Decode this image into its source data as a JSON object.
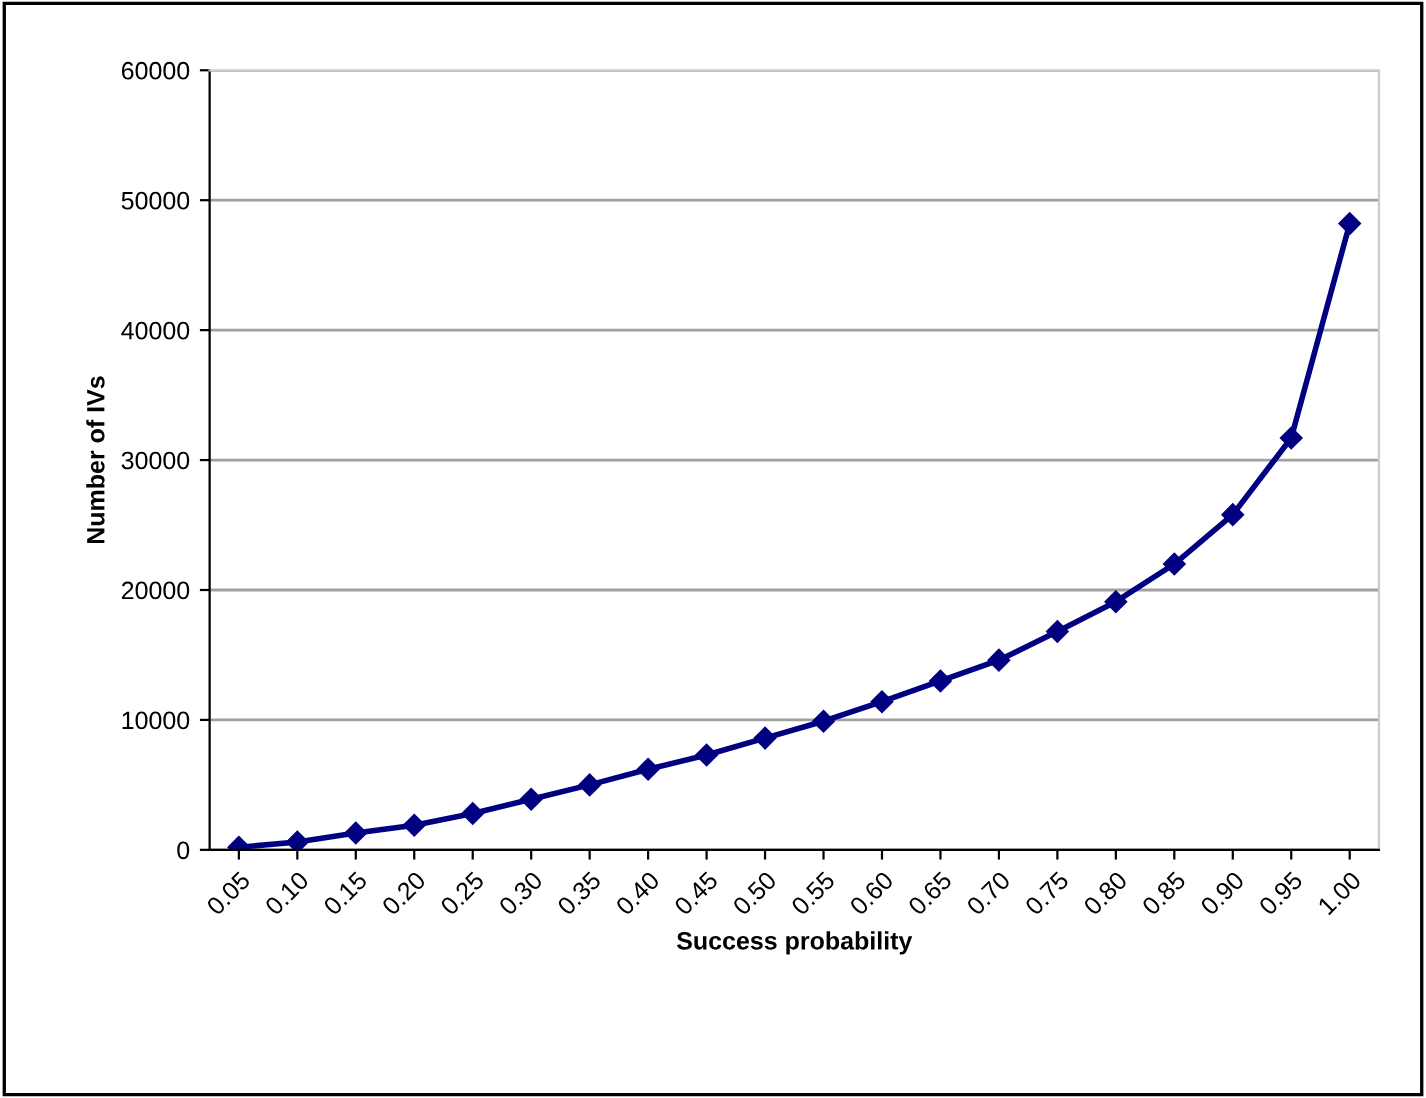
{
  "chart_data": {
    "type": "line",
    "xlabel": "Success probability",
    "ylabel": "Number of IVs",
    "categories": [
      "0.05",
      "0.10",
      "0.15",
      "0.20",
      "0.25",
      "0.30",
      "0.35",
      "0.40",
      "0.45",
      "0.50",
      "0.55",
      "0.60",
      "0.65",
      "0.70",
      "0.75",
      "0.80",
      "0.85",
      "0.90",
      "0.95",
      "1.00"
    ],
    "series": [
      {
        "color": "#000080",
        "values": [
          200,
          600,
          1300,
          1900,
          2800,
          3900,
          5000,
          6200,
          7300,
          8600,
          9900,
          11400,
          13000,
          14600,
          16800,
          19100,
          22000,
          25800,
          31700,
          48200
        ]
      }
    ],
    "ylim": [
      0,
      60000
    ],
    "yticks": [
      0,
      10000,
      20000,
      30000,
      40000,
      50000,
      60000
    ],
    "grid": "y",
    "marker": "diamond",
    "line_style": "solid",
    "legend": false
  }
}
